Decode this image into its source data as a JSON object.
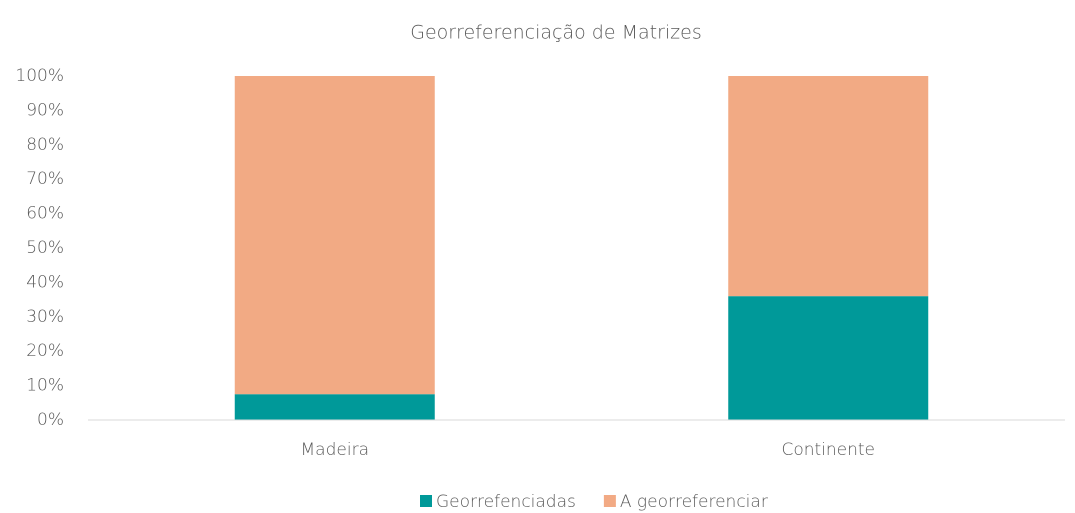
{
  "chart_data": {
    "type": "stacked_bar",
    "title": "Georreferenciação de Matrizes",
    "categories": [
      "Madeira",
      "Continente"
    ],
    "series": [
      {
        "name": "Georrefenciadas",
        "color": "#009999",
        "values": [
          7.5,
          36
        ]
      },
      {
        "name": "A georreferenciar",
        "color": "#f2aa84",
        "values": [
          92.5,
          64
        ]
      }
    ],
    "ylim": [
      0,
      100
    ],
    "yticks": [
      {
        "value": 0,
        "label": "0%"
      },
      {
        "value": 10,
        "label": "10%"
      },
      {
        "value": 20,
        "label": "20%"
      },
      {
        "value": 30,
        "label": "30%"
      },
      {
        "value": 40,
        "label": "40%"
      },
      {
        "value": 50,
        "label": "50%"
      },
      {
        "value": 60,
        "label": "60%"
      },
      {
        "value": 70,
        "label": "70%"
      },
      {
        "value": 80,
        "label": "80%"
      },
      {
        "value": 90,
        "label": "90%"
      },
      {
        "value": 100,
        "label": "100%"
      }
    ],
    "grid": false,
    "legend": "bottom"
  }
}
